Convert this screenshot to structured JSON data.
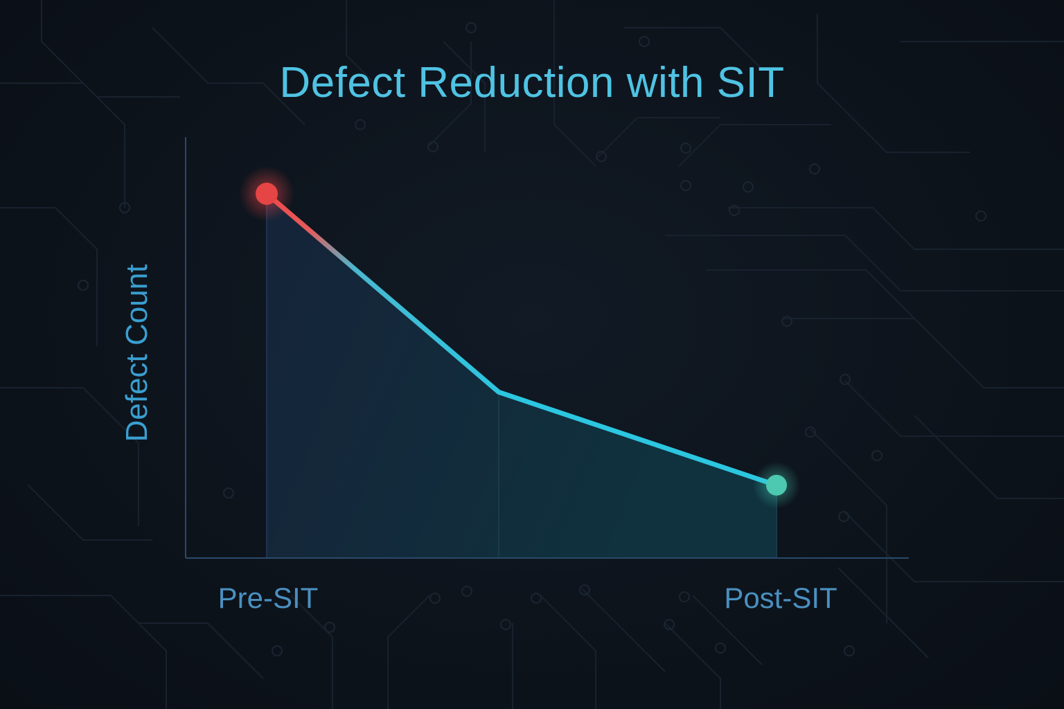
{
  "chart_data": {
    "type": "line",
    "title": "Defect Reduction with SIT",
    "xlabel": "",
    "ylabel": "Defect Count",
    "x": [
      "Pre-SIT",
      "",
      "Post-SIT"
    ],
    "x_tick_labels": [
      "Pre-SIT",
      "Post-SIT"
    ],
    "series": [
      {
        "values": [
          90,
          41,
          18
        ]
      }
    ],
    "ylim": [
      0,
      104
    ],
    "grid": false,
    "legend": "none",
    "area_fill": true,
    "colors": {
      "title": "#4fc3e3",
      "axis": "#2a4a6b",
      "axis_label": "#3a9fd0",
      "tick_label": "#4a90c0",
      "line": "#2cc6e0",
      "start_point": "#e64545",
      "end_point": "#4cc9b0",
      "background": "#0e141d"
    }
  }
}
